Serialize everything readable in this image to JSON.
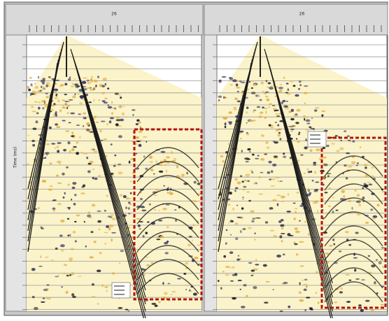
{
  "panels": [
    {
      "header": "26",
      "axis_label": "Time (ms)"
    },
    {
      "header": "26"
    }
  ]
}
